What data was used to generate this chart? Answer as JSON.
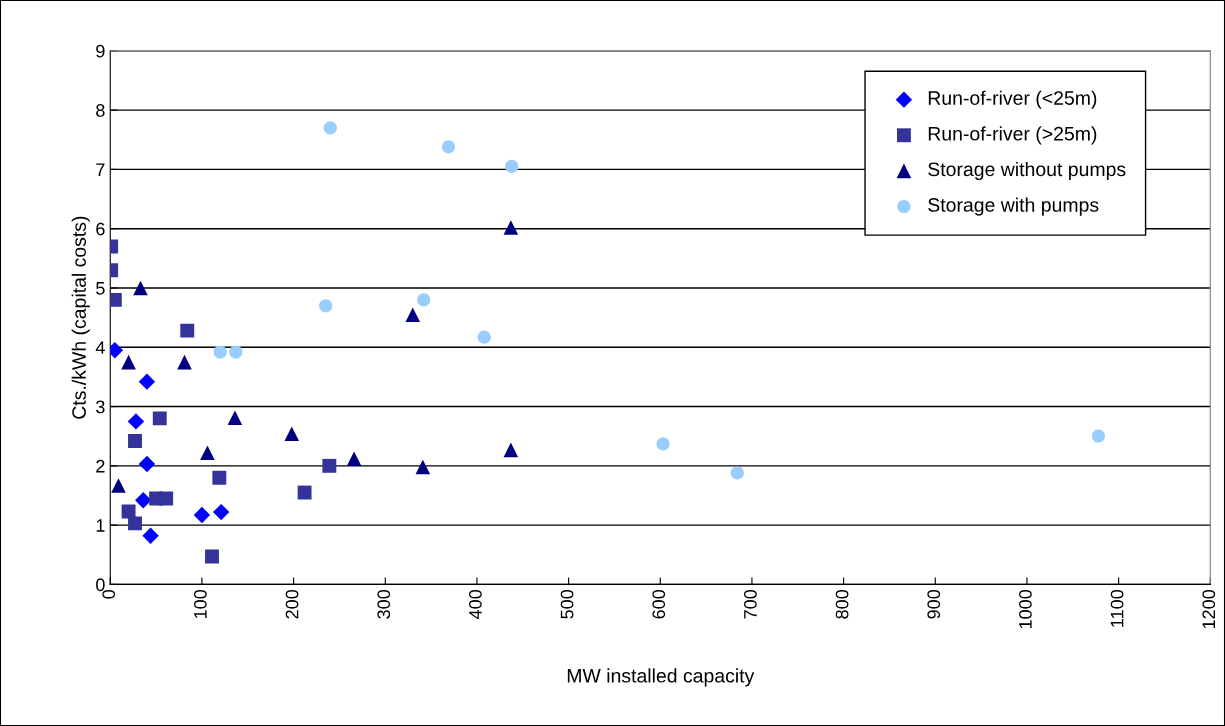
{
  "chart_data": {
    "type": "scatter",
    "xlabel": "MW installed capacity",
    "ylabel": "Cts./kWh (capital costs)",
    "xlim": [
      0,
      1200
    ],
    "xticks": [
      0,
      100,
      200,
      300,
      400,
      500,
      600,
      700,
      800,
      900,
      1000,
      1100,
      1200
    ],
    "ylim": [
      0,
      9
    ],
    "yticks": [
      0,
      1,
      2,
      3,
      4,
      5,
      6,
      7,
      8,
      9
    ],
    "grid": "y",
    "legend": "top right",
    "series": [
      {
        "name": "Run-of-river (<25m)",
        "color": "#0000ff",
        "marker": "diamond",
        "x": [
          5,
          28,
          40,
          40,
          36,
          44,
          100,
          121
        ],
        "values": [
          3.95,
          2.75,
          3.42,
          2.03,
          1.42,
          0.82,
          1.17,
          1.22
        ]
      },
      {
        "name": "Run-of-river (>25m)",
        "color": "#333399",
        "marker": "square",
        "x": [
          1,
          1,
          5,
          84,
          54,
          27,
          119,
          20,
          27,
          50,
          61,
          111,
          239,
          212
        ],
        "values": [
          5.7,
          5.3,
          4.8,
          4.28,
          2.8,
          2.42,
          1.8,
          1.23,
          1.03,
          1.45,
          1.45,
          0.47,
          2.0,
          1.55
        ]
      },
      {
        "name": "Storage without pumps",
        "color": "#000080",
        "marker": "triangle",
        "x": [
          33,
          20,
          81,
          9,
          136,
          106,
          198,
          266,
          341,
          437,
          330,
          437
        ],
        "values": [
          5.0,
          3.75,
          3.75,
          1.67,
          2.81,
          2.22,
          2.54,
          2.12,
          1.98,
          2.27,
          4.55,
          6.02
        ]
      },
      {
        "name": "Storage with pumps",
        "color": "#99ccff",
        "marker": "circle",
        "x": [
          240,
          369,
          438,
          235,
          342,
          408,
          120,
          137,
          603,
          684,
          1078
        ],
        "values": [
          7.7,
          7.38,
          7.05,
          4.7,
          4.8,
          4.17,
          3.92,
          3.92,
          2.37,
          1.88,
          2.5
        ]
      }
    ]
  }
}
